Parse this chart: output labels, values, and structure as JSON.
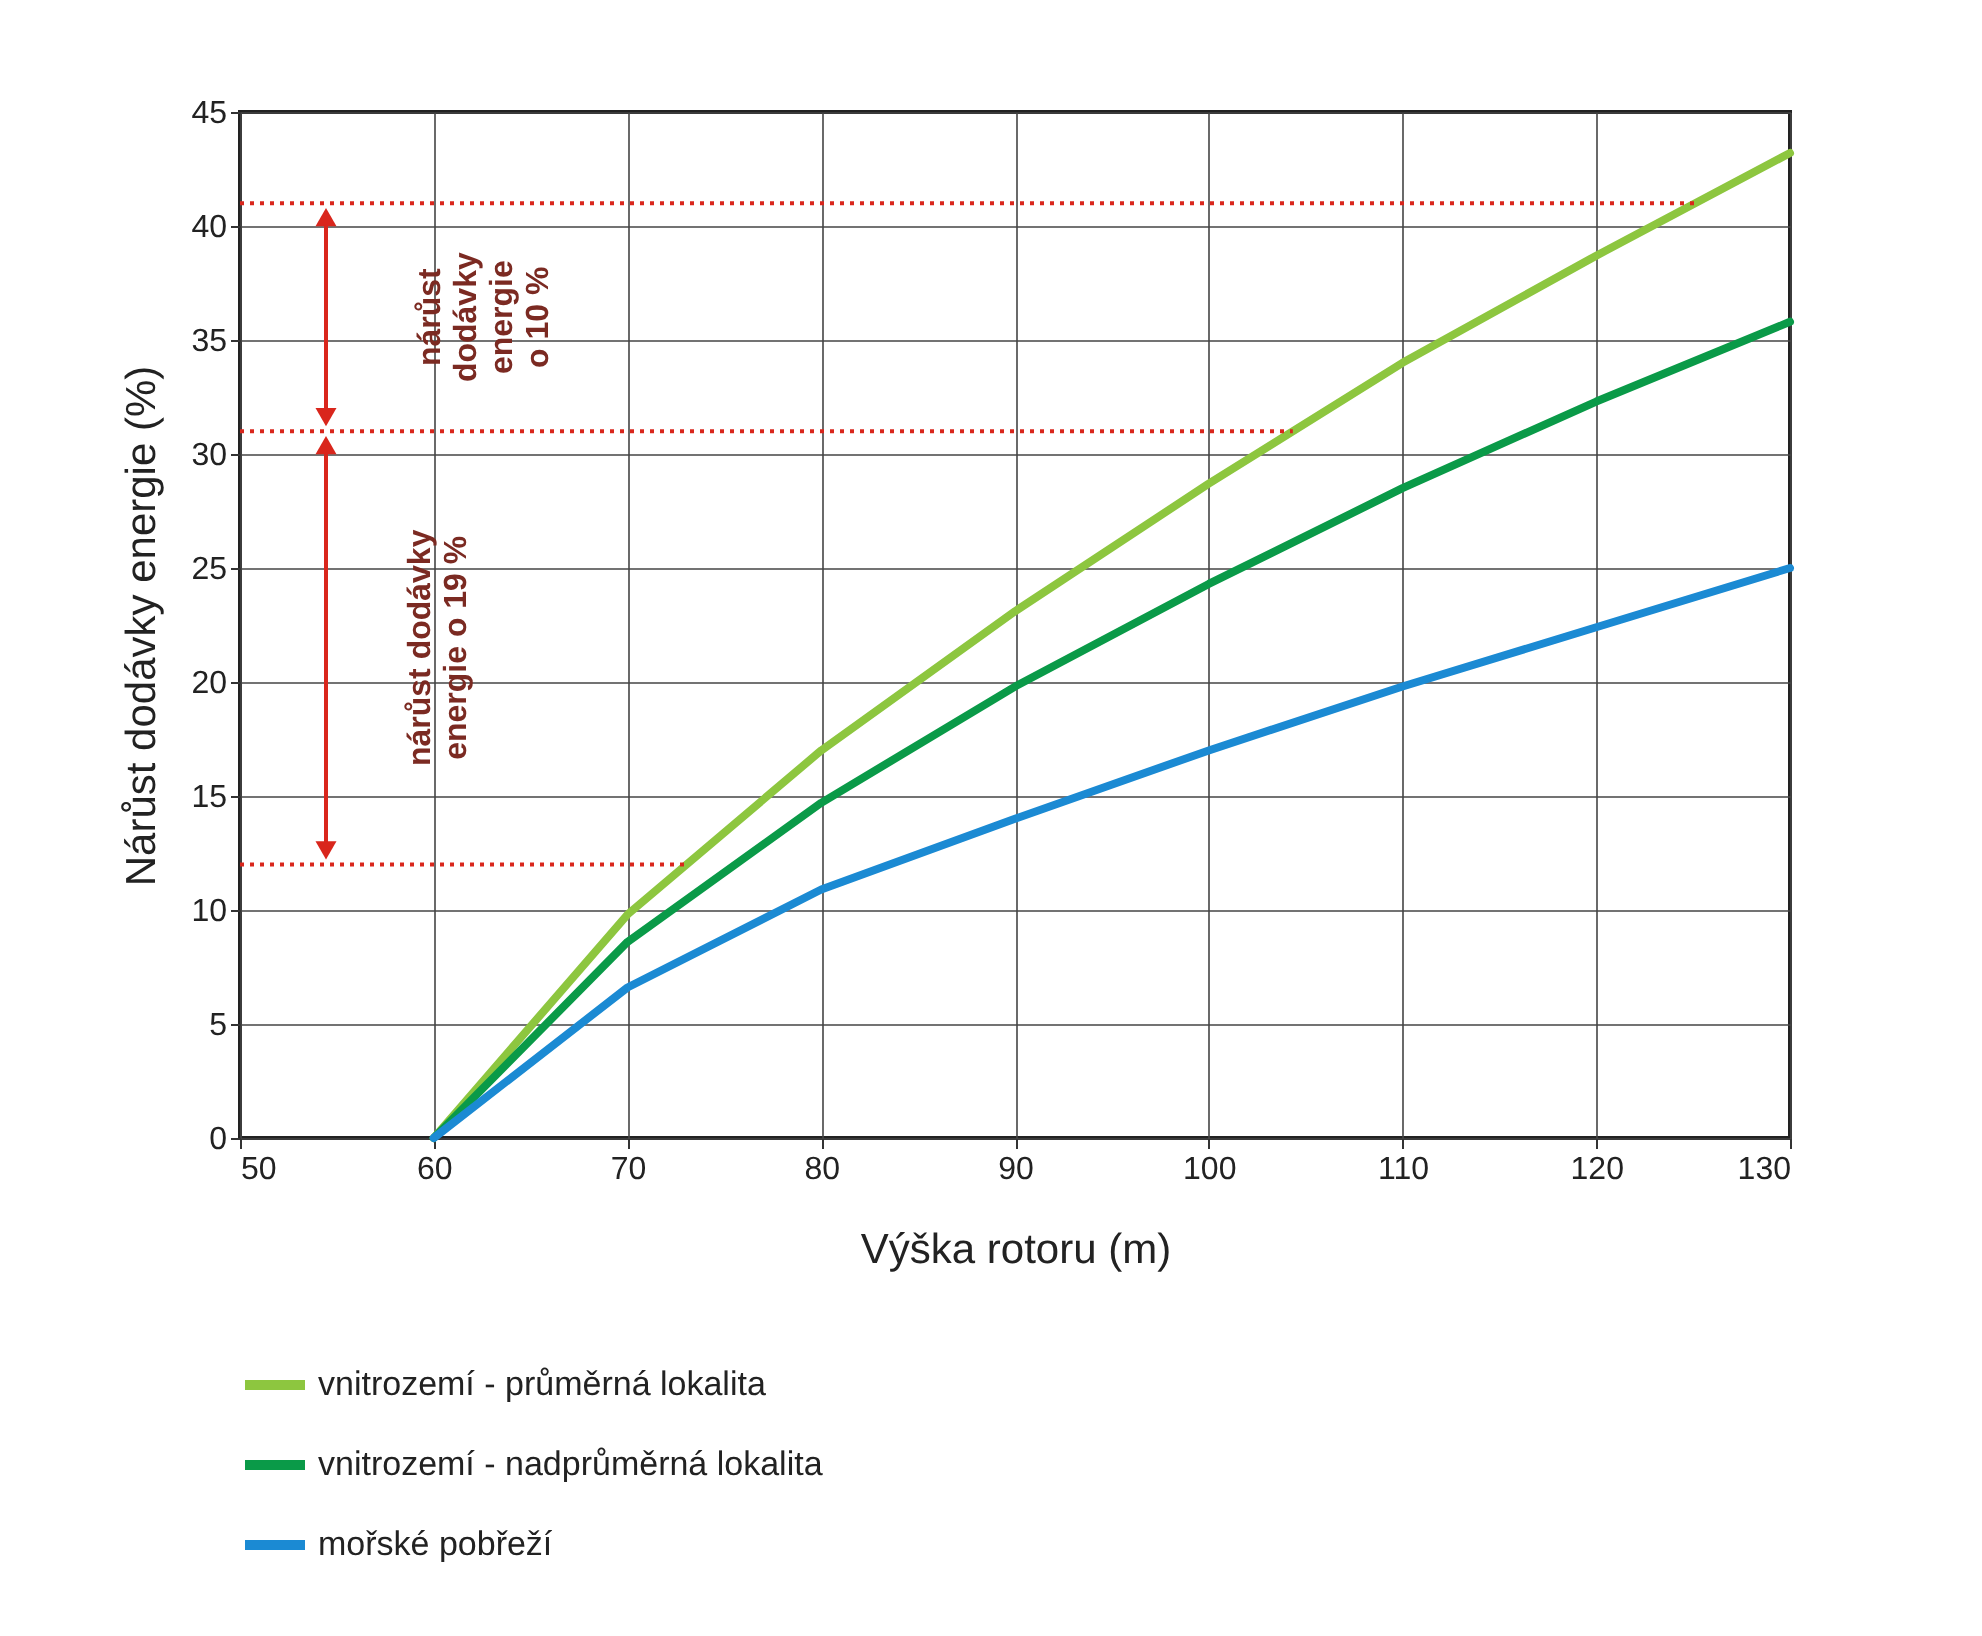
{
  "chart_data": {
    "type": "line",
    "xlabel": "Výška rotoru (m)",
    "ylabel": "Nárůst dodávky energie (%)",
    "x": [
      60,
      70,
      80,
      90,
      100,
      110,
      120,
      130
    ],
    "series": [
      {
        "name": "vnitrozemí - průměrná lokalita",
        "color": "#8dc63f",
        "values": [
          0,
          9.8,
          17,
          23.1,
          28.7,
          34,
          38.7,
          43.2
        ]
      },
      {
        "name": "vnitrozemí - nadprůměrná lokalita",
        "color": "#0a9a48",
        "values": [
          0,
          8.6,
          14.7,
          19.8,
          24.3,
          28.5,
          32.3,
          35.8
        ]
      },
      {
        "name": "mořské pobřeží",
        "color": "#1b8ad3",
        "values": [
          0,
          6.6,
          10.9,
          14,
          17,
          19.8,
          22.4,
          25
        ]
      }
    ],
    "xlim": [
      50,
      130
    ],
    "xticks": [
      50,
      60,
      70,
      80,
      90,
      100,
      110,
      120,
      130
    ],
    "ylim": [
      0,
      45
    ],
    "yticks": [
      0,
      5,
      10,
      15,
      20,
      25,
      30,
      35,
      40,
      45
    ],
    "grid": true,
    "legend": "bottom",
    "marker": "none",
    "line_style": "solid",
    "ref_lines": [
      {
        "axis": "y",
        "value": 41,
        "color": "#d9261c",
        "line_style": "dotted"
      },
      {
        "axis": "y",
        "value": 31,
        "color": "#d9261c",
        "line_style": "dotted"
      },
      {
        "axis": "y",
        "value": 12,
        "color": "#d9261c",
        "line_style": "dotted"
      }
    ],
    "annotations": [
      "nárůst dodávky energie o 10 %",
      "nárůst dodávky energie o 19 %"
    ]
  }
}
